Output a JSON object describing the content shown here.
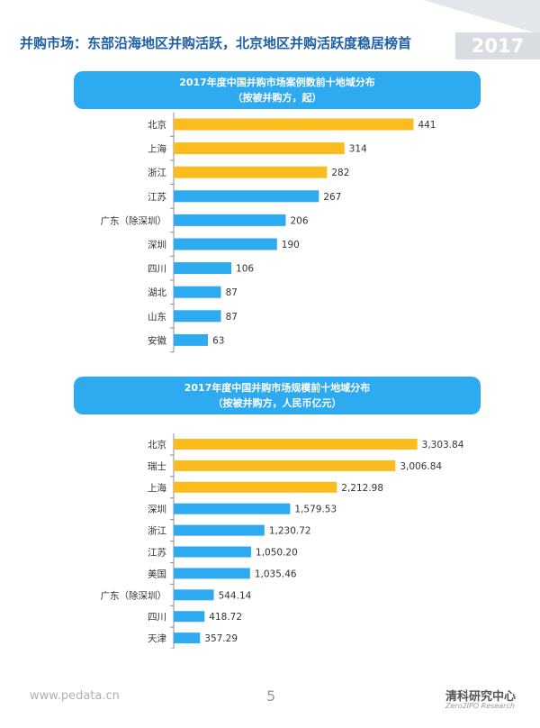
{
  "header": {
    "title": "并购市场：东部沿海地区并购活跃，北京地区并购活跃度稳居榜首",
    "year_badge": "2017"
  },
  "colors": {
    "highlight": "#fbbd1e",
    "normal": "#2eaaf0",
    "title_bg": "#2eaaf0"
  },
  "chart_data": [
    {
      "type": "bar",
      "orientation": "horizontal",
      "title": "2017年度中国并购市场案例数前十地域分布",
      "subtitle": "（按被并购方，起）",
      "categories": [
        "北京",
        "上海",
        "浙江",
        "江苏",
        "广东（除深圳）",
        "深圳",
        "四川",
        "湖北",
        "山东",
        "安徽"
      ],
      "values": [
        441,
        314,
        282,
        267,
        206,
        190,
        106,
        87,
        87,
        63
      ],
      "value_labels": [
        "441",
        "314",
        "282",
        "267",
        "206",
        "190",
        "106",
        "87",
        "87",
        "63"
      ],
      "highlight_count": 3,
      "xlim": [
        0,
        480
      ]
    },
    {
      "type": "bar",
      "orientation": "horizontal",
      "title": "2017年度中国并购市场规模前十地域分布",
      "subtitle": "（按被并购方，人民币亿元）",
      "categories": [
        "北京",
        "瑞士",
        "上海",
        "深圳",
        "浙江",
        "江苏",
        "美国",
        "广东（除深圳）",
        "四川",
        "天津"
      ],
      "values": [
        3303.84,
        3006.84,
        2212.98,
        1579.53,
        1230.72,
        1050.2,
        1035.46,
        544.14,
        418.72,
        357.29
      ],
      "value_labels": [
        "3,303.84",
        "3,006.84",
        "2,212.98",
        "1,579.53",
        "1,230.72",
        "1,050.20",
        "1,035.46",
        "544.14",
        "418.72",
        "357.29"
      ],
      "highlight_count": 3,
      "xlim": [
        0,
        3540
      ]
    }
  ],
  "footer": {
    "url": "www.pedata.cn",
    "page": "5",
    "brand": "清科研究中心",
    "brand_sub": "Zero2IPO Research"
  }
}
